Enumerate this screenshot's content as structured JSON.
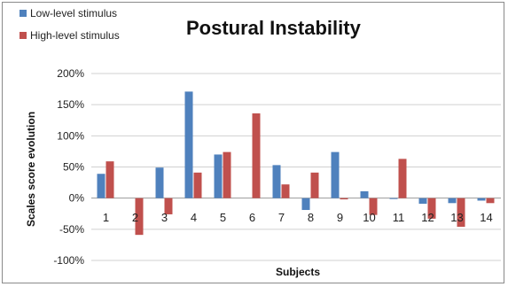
{
  "chart_data": {
    "type": "bar",
    "title": "Postural Instability",
    "xlabel": "Subjects",
    "ylabel": "Scales score evolution",
    "categories": [
      "1",
      "2",
      "3",
      "4",
      "5",
      "6",
      "7",
      "8",
      "9",
      "10",
      "11",
      "12",
      "13",
      "14"
    ],
    "y_ticks": [
      "200%",
      "150%",
      "100%",
      "50%",
      "0%",
      "-50%",
      "-100%"
    ],
    "ylim": [
      -100,
      200
    ],
    "unit": "%",
    "grid": "horizontal",
    "legend_position": "top-left",
    "series": [
      {
        "name": "Low-level stimulus",
        "color": "#4f81bd",
        "values": [
          39,
          0,
          49,
          171,
          70,
          0,
          53,
          -19,
          74,
          11,
          -1,
          -9,
          -8,
          -4
        ]
      },
      {
        "name": "High-level stimulus",
        "color": "#c0504d",
        "values": [
          59,
          -59,
          -26,
          41,
          74,
          136,
          22,
          41,
          -2,
          -27,
          63,
          -33,
          -46,
          -8
        ]
      }
    ]
  }
}
